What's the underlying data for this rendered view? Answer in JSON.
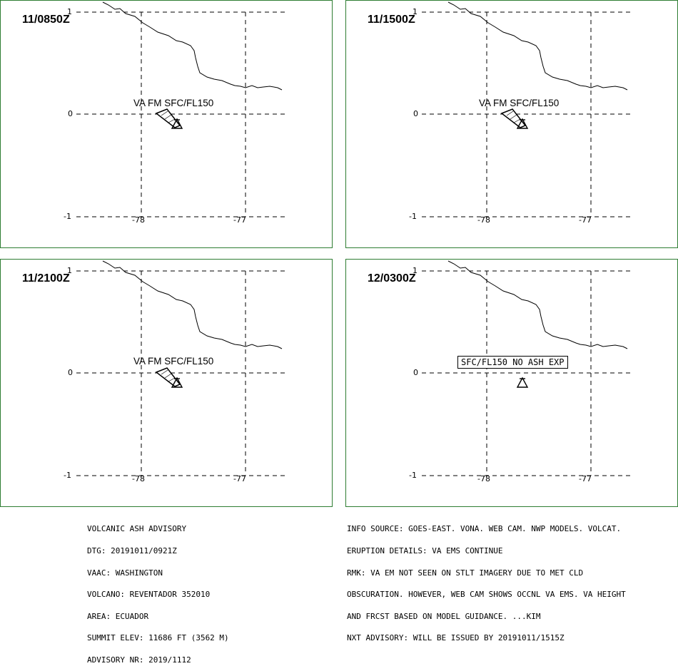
{
  "panels": [
    {
      "time": "11/0850Z",
      "lat_top": "1",
      "lat_mid": "0",
      "lat_bot": "-1",
      "lon_left": "-78",
      "lon_right": "-77",
      "label": "VA FM SFC/FL150",
      "has_ash": true
    },
    {
      "time": "11/1500Z",
      "lat_top": "1",
      "lat_mid": "0",
      "lat_bot": "-1",
      "lon_left": "-78",
      "lon_right": "-77",
      "label": "VA FM SFC/FL150",
      "has_ash": true
    },
    {
      "time": "11/2100Z",
      "lat_top": "1",
      "lat_mid": "0",
      "lat_bot": "-1",
      "lon_left": "-78",
      "lon_right": "-77",
      "label": "VA FM SFC/FL150",
      "has_ash": true
    },
    {
      "time": "12/0300Z",
      "lat_top": "1",
      "lat_mid": "0",
      "lat_bot": "-1",
      "lon_left": "-78",
      "lon_right": "-77",
      "label": "SFC/FL150 NO ASH EXP",
      "has_ash": false
    }
  ],
  "advisory_left": [
    "VOLCANIC ASH ADVISORY",
    "DTG: 20191011/0921Z",
    "VAAC: WASHINGTON",
    "VOLCANO: REVENTADOR 352010",
    "AREA: ECUADOR",
    "SUMMIT ELEV: 11686 FT (3562 M)",
    "ADVISORY NR: 2019/1112"
  ],
  "advisory_right": [
    "INFO SOURCE: GOES-EAST. VONA. WEB CAM. NWP MODELS. VOLCAT.",
    "ERUPTION DETAILS: VA EMS CONTINUE",
    "RMK: VA EM NOT SEEN ON STLT IMAGERY DUE TO MET CLD",
    "OBSCURATION. HOWEVER, WEB CAM SHOWS OCCNL VA EMS. VA HEIGHT",
    "AND FRCST BASED ON MODEL GUIDANCE. ...KIM",
    "NXT ADVISORY: WILL BE ISSUED BY 20191011/1515Z"
  ],
  "colors": {
    "panel_border": "#2e7d32",
    "lines": "#000000"
  },
  "icons": {
    "volcano": "volcano-icon",
    "ash_plume": "ash-plume-polygon"
  }
}
